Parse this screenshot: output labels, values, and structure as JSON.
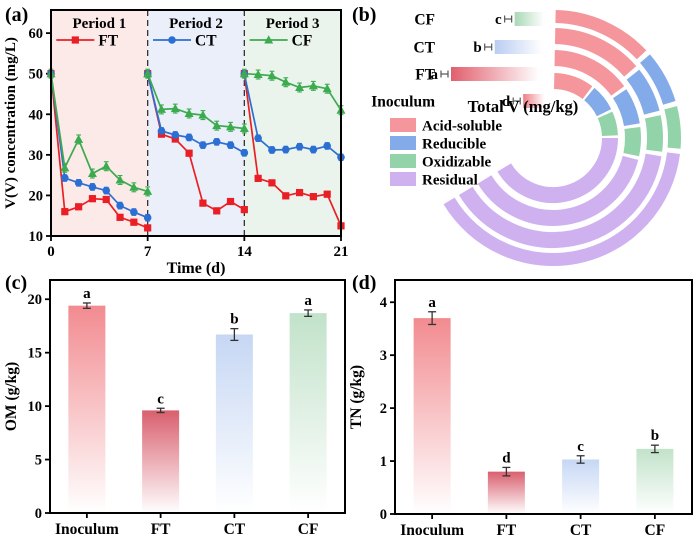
{
  "chart_data": [
    {
      "panel": "a",
      "tag": "(a)",
      "type": "line",
      "xlabel": "Time (d)",
      "ylabel": "V(V) concentration (mg/L)",
      "xticks": [
        0,
        7,
        14,
        21
      ],
      "yticks": [
        10,
        20,
        30,
        40,
        50,
        60
      ],
      "xlim": [
        0,
        21
      ],
      "ylim": [
        10,
        65.7
      ],
      "divider_x": [
        7,
        14
      ],
      "periods": [
        {
          "label": "Period 1",
          "x0": 0,
          "x1": 7,
          "bg": "#fceae9"
        },
        {
          "label": "Period 2",
          "x0": 7,
          "x1": 14,
          "bg": "#eaeffa"
        },
        {
          "label": "Period 3",
          "x0": 14,
          "x1": 21,
          "bg": "#eaf4ec"
        }
      ],
      "series": [
        {
          "name": "FT",
          "color": "#ea1f26",
          "marker": "square",
          "err": 0.7,
          "segments": [
            {
              "x": [
                0,
                1,
                2,
                3,
                4,
                5,
                6,
                7
              ],
              "y": [
                50,
                16,
                17.2,
                19.2,
                19,
                14.6,
                13.4,
                12
              ]
            },
            {
              "x": [
                7,
                8,
                9,
                10,
                11,
                12,
                13,
                14
              ],
              "y": [
                50,
                35.1,
                33.9,
                30.4,
                18.1,
                16.2,
                18.5,
                16.5
              ]
            },
            {
              "x": [
                14,
                15,
                16,
                17,
                18,
                19,
                20,
                21
              ],
              "y": [
                50,
                24.2,
                23.1,
                19.9,
                20.7,
                19.7,
                20.3,
                12.5
              ]
            }
          ]
        },
        {
          "name": "CT",
          "color": "#2c6fd3",
          "marker": "circle",
          "err": 0.8,
          "segments": [
            {
              "x": [
                0,
                1,
                2,
                3,
                4,
                5,
                6,
                7
              ],
              "y": [
                50,
                24.3,
                23.1,
                22.1,
                21.2,
                17.5,
                15.9,
                14.5
              ]
            },
            {
              "x": [
                7,
                8,
                9,
                10,
                11,
                12,
                13,
                14
              ],
              "y": [
                50,
                35.9,
                34.9,
                34.3,
                32.4,
                33.2,
                32.4,
                30.5
              ]
            },
            {
              "x": [
                14,
                15,
                16,
                17,
                18,
                19,
                20,
                21
              ],
              "y": [
                50,
                34.1,
                31.2,
                31.3,
                32,
                31.3,
                32.2,
                29.4
              ]
            }
          ]
        },
        {
          "name": "CF",
          "color": "#3cab4f",
          "marker": "triangle",
          "err": 1.1,
          "segments": [
            {
              "x": [
                0,
                1,
                2,
                3,
                4,
                5,
                6,
                7
              ],
              "y": [
                50,
                26.8,
                33.8,
                25.4,
                27.2,
                23.8,
                22,
                21
              ]
            },
            {
              "x": [
                7,
                8,
                9,
                10,
                11,
                12,
                13,
                14
              ],
              "y": [
                50,
                41.2,
                41.4,
                40.2,
                39.8,
                37.2,
                36.9,
                36.5
              ]
            },
            {
              "x": [
                14,
                15,
                16,
                17,
                18,
                19,
                20,
                21
              ],
              "y": [
                50,
                49.8,
                49.5,
                47.9,
                46.6,
                47,
                46.3,
                41
              ]
            }
          ]
        }
      ]
    },
    {
      "panel": "b",
      "tag": "(b)",
      "type": "circular-stacked-bar",
      "axis_label": "Total V (mg/kg)",
      "sweep_deg": 240,
      "fraction_names": [
        "Acid-soluble",
        "Reducible",
        "Oxidizable",
        "Residual"
      ],
      "legend": [
        {
          "label": "Acid-soluble",
          "color": "#f4969b"
        },
        {
          "label": "Reducible",
          "color": "#84abe9"
        },
        {
          "label": "Oxidizable",
          "color": "#93d3aa"
        },
        {
          "label": "Residual",
          "color": "#cfb1ef"
        }
      ],
      "rows": [
        {
          "name": "CF",
          "letter": "c",
          "bar_color": "#a9d8b6",
          "bar_frac": 0.33,
          "parts": [
            20,
            11,
            9,
            60
          ]
        },
        {
          "name": "CT",
          "letter": "b",
          "bar_color": "#b9cdf2",
          "bar_frac": 0.54,
          "parts": [
            21,
            11,
            9,
            59
          ]
        },
        {
          "name": "FT",
          "letter": "a",
          "bar_color": "#e15f6d",
          "bar_frac": 1.0,
          "parts": [
            23,
            11,
            9,
            57
          ]
        },
        {
          "name": "Inoculum",
          "letter": "d",
          "bar_color": "#ef7e85",
          "bar_frac": 0.24,
          "parts": [
            16,
            11,
            10,
            63
          ]
        }
      ],
      "ring_order_outer_to_inner": [
        "CF",
        "CT",
        "FT",
        "Inoculum"
      ]
    },
    {
      "panel": "c",
      "tag": "(c)",
      "type": "bar",
      "ylabel": "OM (g/kg)",
      "categories": [
        "Inoculum",
        "FT",
        "CT",
        "CF"
      ],
      "values": [
        19.4,
        9.6,
        16.7,
        18.7
      ],
      "errors": [
        0.25,
        0.2,
        0.55,
        0.3
      ],
      "letters": [
        "a",
        "c",
        "b",
        "a"
      ],
      "yticks": [
        0,
        5,
        10,
        15,
        20
      ],
      "ylim": [
        0,
        21.8
      ],
      "bar_colors": [
        "#f28b90",
        "#d95f6e",
        "#c6d7f4",
        "#c2e2ca"
      ]
    },
    {
      "panel": "d",
      "tag": "(d)",
      "type": "bar",
      "ylabel": "TN (g/kg)",
      "categories": [
        "Inoculum",
        "FT",
        "CT",
        "CF"
      ],
      "values": [
        3.7,
        0.8,
        1.03,
        1.23
      ],
      "errors": [
        0.12,
        0.08,
        0.07,
        0.07
      ],
      "letters": [
        "a",
        "d",
        "c",
        "b"
      ],
      "yticks": [
        0,
        1,
        2,
        3,
        4
      ],
      "ylim": [
        0,
        4.42
      ],
      "bar_colors": [
        "#f28b90",
        "#d95f6e",
        "#c6d7f4",
        "#c2e2ca"
      ]
    }
  ]
}
